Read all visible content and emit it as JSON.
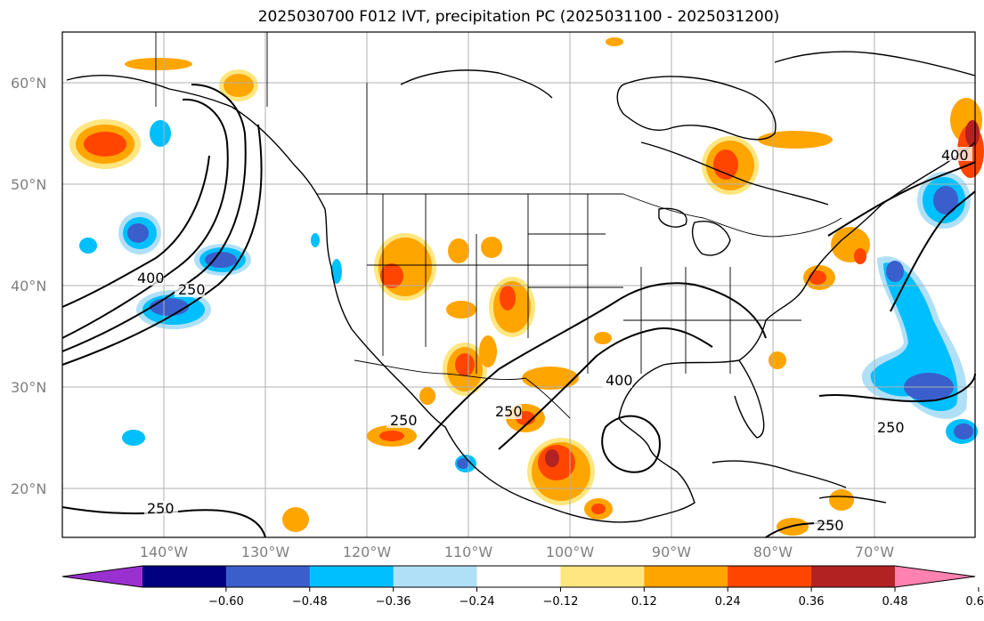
{
  "title": "2025030700 F012 IVT, precipitation PC (2025031100 - 2025031200)",
  "lat_labels": [
    "60°N",
    "50°N",
    "40°N",
    "30°N",
    "20°N"
  ],
  "lon_labels": [
    "140°W",
    "130°W",
    "120°W",
    "110°W",
    "100°W",
    "90°W",
    "80°W",
    "70°W"
  ],
  "colorbar": {
    "ticks": [
      "−0.60",
      "−0.48",
      "−0.36",
      "−0.24",
      "−0.12",
      "0.12",
      "0.24",
      "0.36",
      "0.48",
      "0.60"
    ],
    "colors": [
      "#9b30d0",
      "#000080",
      "#3a5fcd",
      "#00bfff",
      "#b0e0f8",
      "#ffffff",
      "#ffe680",
      "#ffa500",
      "#ff4500",
      "#b22222",
      "#ff82b0"
    ]
  },
  "contour_labels": [
    "400",
    "250",
    "250",
    "250",
    "400",
    "250",
    "250",
    "250",
    "400"
  ],
  "colors": {
    "grid": "#b0b0b0",
    "orange": "#ffa500",
    "red_orange": "#ff4500",
    "yellow": "#ffe680",
    "light_blue": "#b0e0f8",
    "deep_sky": "#00bfff",
    "royal": "#3a5fcd"
  }
}
